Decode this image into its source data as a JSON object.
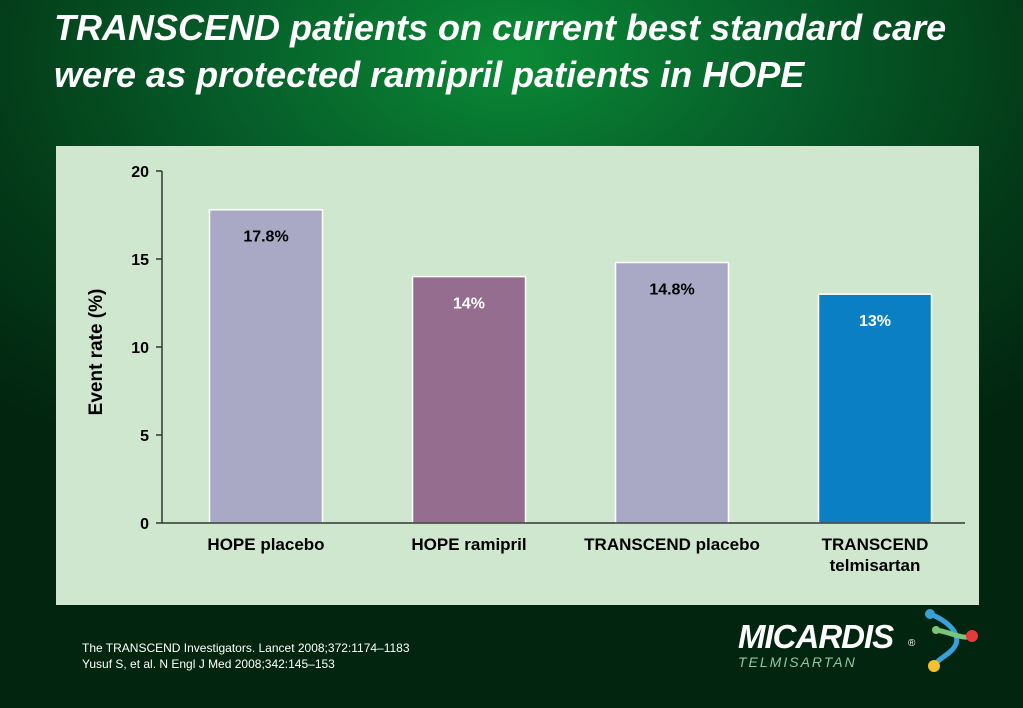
{
  "title": "TRANSCEND patients on current best standard care were as protected ramipril patients in HOPE",
  "chart_data": {
    "type": "bar",
    "title": "",
    "xlabel": "",
    "ylabel": "Event rate (%)",
    "ylim": [
      0,
      20
    ],
    "yticks": [
      "0",
      "5",
      "10",
      "15",
      "20"
    ],
    "grid": false,
    "categories": [
      "HOPE placebo",
      "HOPE ramipril",
      "TRANSCEND placebo",
      "TRANSCEND telmisartan"
    ],
    "values": [
      17.8,
      14,
      14.8,
      13
    ],
    "data_labels": [
      "17.8%",
      "14%",
      "14.8%",
      "13%"
    ],
    "colors": [
      "#a9a9c5",
      "#946d8f",
      "#a9a9c5",
      "#0a7fc4"
    ],
    "label_colors": [
      "#000000",
      "#ffffff",
      "#000000",
      "#ffffff"
    ]
  },
  "references": [
    "The TRANSCEND Investigators. Lancet 2008;372:1174–1183",
    "Yusuf S, et al. N Engl J Med 2008;342:145–153"
  ],
  "logo": {
    "name": "MICARDIS",
    "registered": "®",
    "subtitle": "TELMISARTAN",
    "icon": "molecule-icon"
  }
}
